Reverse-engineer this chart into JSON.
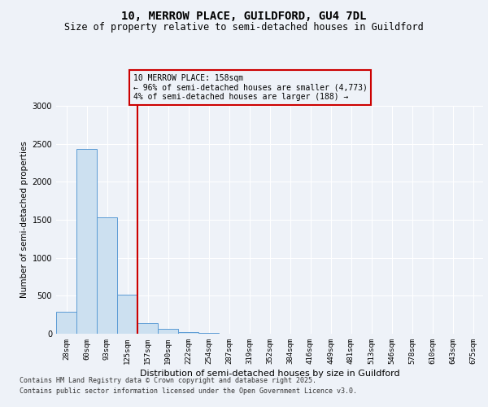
{
  "title1": "10, MERROW PLACE, GUILDFORD, GU4 7DL",
  "title2": "Size of property relative to semi-detached houses in Guildford",
  "xlabel": "Distribution of semi-detached houses by size in Guildford",
  "ylabel": "Number of semi-detached properties",
  "categories": [
    "28sqm",
    "60sqm",
    "93sqm",
    "125sqm",
    "157sqm",
    "190sqm",
    "222sqm",
    "254sqm",
    "287sqm",
    "319sqm",
    "352sqm",
    "384sqm",
    "416sqm",
    "449sqm",
    "481sqm",
    "513sqm",
    "546sqm",
    "578sqm",
    "610sqm",
    "643sqm",
    "675sqm"
  ],
  "values": [
    290,
    2430,
    1530,
    510,
    135,
    60,
    25,
    10,
    0,
    0,
    0,
    0,
    0,
    0,
    0,
    0,
    0,
    0,
    0,
    0,
    0
  ],
  "bar_color": "#cce0f0",
  "bar_edge_color": "#5b9bd5",
  "vline_color": "#cc0000",
  "vline_index": 4,
  "annotation_text": "10 MERROW PLACE: 158sqm\n← 96% of semi-detached houses are smaller (4,773)\n4% of semi-detached houses are larger (188) →",
  "background_color": "#eef2f8",
  "grid_color": "#ffffff",
  "footer1": "Contains HM Land Registry data © Crown copyright and database right 2025.",
  "footer2": "Contains public sector information licensed under the Open Government Licence v3.0.",
  "ylim": [
    0,
    3000
  ],
  "yticks": [
    0,
    500,
    1000,
    1500,
    2000,
    2500,
    3000
  ],
  "title1_fontsize": 10,
  "title2_fontsize": 8.5,
  "ylabel_fontsize": 7.5,
  "xlabel_fontsize": 8,
  "tick_fontsize": 6.5,
  "annot_fontsize": 7,
  "footer_fontsize": 6
}
